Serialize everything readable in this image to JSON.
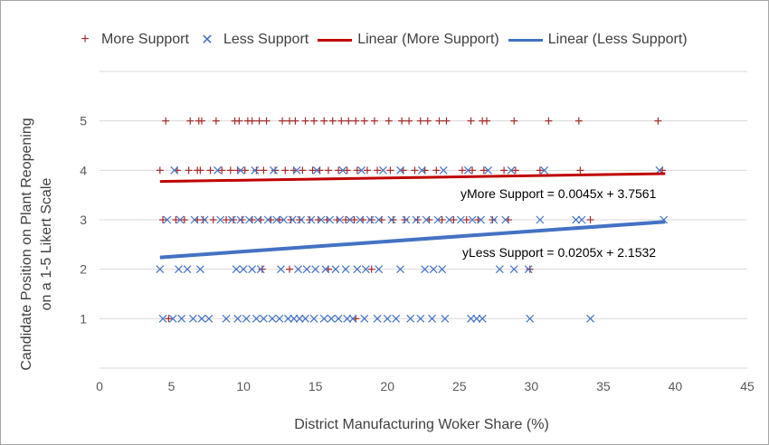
{
  "chart_data": {
    "type": "scatter",
    "xlabel": "District Manufacturing Woker Share (%)",
    "ylabel": "Candidate Position on Plant Reopening on a 1-5 Likert Scale",
    "xlim": [
      0,
      45
    ],
    "ylim": [
      0,
      6
    ],
    "x_ticks": [
      "0",
      "5",
      "10",
      "15",
      "20",
      "25",
      "30",
      "35",
      "40",
      "45"
    ],
    "y_ticks": [
      "1",
      "2",
      "3",
      "4",
      "5"
    ],
    "grid": "horizontal",
    "legend_position": "top",
    "series": [
      {
        "name": "More Support",
        "marker": "plus",
        "color": "#a52a2a",
        "points": [
          [
            4.6,
            5
          ],
          [
            6.3,
            5
          ],
          [
            6.9,
            5
          ],
          [
            7.1,
            5
          ],
          [
            8.1,
            5
          ],
          [
            9.4,
            5
          ],
          [
            9.7,
            5
          ],
          [
            10.3,
            5
          ],
          [
            10.6,
            5
          ],
          [
            11.1,
            5
          ],
          [
            11.6,
            5
          ],
          [
            12.7,
            5
          ],
          [
            13.2,
            5
          ],
          [
            13.6,
            5
          ],
          [
            14.3,
            5
          ],
          [
            14.9,
            5
          ],
          [
            15.6,
            5
          ],
          [
            16.2,
            5
          ],
          [
            16.8,
            5
          ],
          [
            17.3,
            5
          ],
          [
            17.8,
            5
          ],
          [
            18.4,
            5
          ],
          [
            19.1,
            5
          ],
          [
            20.1,
            5
          ],
          [
            21.0,
            5
          ],
          [
            21.5,
            5
          ],
          [
            22.3,
            5
          ],
          [
            22.8,
            5
          ],
          [
            23.6,
            5
          ],
          [
            24.1,
            5
          ],
          [
            25.8,
            5
          ],
          [
            26.6,
            5
          ],
          [
            26.9,
            5
          ],
          [
            28.8,
            5
          ],
          [
            31.2,
            5
          ],
          [
            33.3,
            5
          ],
          [
            38.8,
            5
          ],
          [
            4.2,
            4
          ],
          [
            5.4,
            4
          ],
          [
            6.2,
            4
          ],
          [
            6.8,
            4
          ],
          [
            7.0,
            4
          ],
          [
            7.7,
            4
          ],
          [
            8.5,
            4
          ],
          [
            9.1,
            4
          ],
          [
            9.6,
            4
          ],
          [
            10.1,
            4
          ],
          [
            10.9,
            4
          ],
          [
            11.4,
            4
          ],
          [
            12.2,
            4
          ],
          [
            12.9,
            4
          ],
          [
            13.5,
            4
          ],
          [
            14.1,
            4
          ],
          [
            14.8,
            4
          ],
          [
            15.3,
            4
          ],
          [
            15.9,
            4
          ],
          [
            16.6,
            4
          ],
          [
            17.2,
            4
          ],
          [
            17.9,
            4
          ],
          [
            18.6,
            4
          ],
          [
            19.3,
            4
          ],
          [
            20.2,
            4
          ],
          [
            21.1,
            4
          ],
          [
            21.9,
            4
          ],
          [
            22.6,
            4
          ],
          [
            23.4,
            4
          ],
          [
            25.2,
            4
          ],
          [
            25.9,
            4
          ],
          [
            26.7,
            4
          ],
          [
            28.1,
            4
          ],
          [
            28.9,
            4
          ],
          [
            30.6,
            4
          ],
          [
            33.4,
            4
          ],
          [
            39.1,
            4
          ],
          [
            4.4,
            3
          ],
          [
            5.3,
            3
          ],
          [
            5.9,
            3
          ],
          [
            6.8,
            3
          ],
          [
            7.2,
            3
          ],
          [
            7.9,
            3
          ],
          [
            8.8,
            3
          ],
          [
            9.3,
            3
          ],
          [
            9.9,
            3
          ],
          [
            10.6,
            3
          ],
          [
            11.2,
            3
          ],
          [
            11.9,
            3
          ],
          [
            12.5,
            3
          ],
          [
            13.3,
            3
          ],
          [
            13.9,
            3
          ],
          [
            14.6,
            3
          ],
          [
            15.2,
            3
          ],
          [
            15.8,
            3
          ],
          [
            16.5,
            3
          ],
          [
            17.1,
            3
          ],
          [
            17.7,
            3
          ],
          [
            18.3,
            3
          ],
          [
            18.9,
            3
          ],
          [
            19.6,
            3
          ],
          [
            20.4,
            3
          ],
          [
            21.2,
            3
          ],
          [
            22.1,
            3
          ],
          [
            22.9,
            3
          ],
          [
            23.8,
            3
          ],
          [
            24.6,
            3
          ],
          [
            25.5,
            3
          ],
          [
            26.3,
            3
          ],
          [
            27.3,
            3
          ],
          [
            28.4,
            3
          ],
          [
            34.1,
            3
          ],
          [
            11.3,
            2
          ],
          [
            13.2,
            2
          ],
          [
            15.9,
            2
          ],
          [
            18.9,
            2
          ],
          [
            29.9,
            2
          ],
          [
            4.8,
            1
          ],
          [
            17.8,
            1
          ]
        ]
      },
      {
        "name": "Less Support",
        "marker": "x",
        "color": "#4472c4",
        "points": [
          [
            5.2,
            4
          ],
          [
            8.2,
            4
          ],
          [
            9.8,
            4
          ],
          [
            10.8,
            4
          ],
          [
            12.1,
            4
          ],
          [
            13.7,
            4
          ],
          [
            15.1,
            4
          ],
          [
            16.9,
            4
          ],
          [
            18.2,
            4
          ],
          [
            19.7,
            4
          ],
          [
            20.9,
            4
          ],
          [
            22.4,
            4
          ],
          [
            23.9,
            4
          ],
          [
            25.6,
            4
          ],
          [
            27.0,
            4
          ],
          [
            28.6,
            4
          ],
          [
            30.9,
            4
          ],
          [
            38.9,
            4
          ],
          [
            4.7,
            3
          ],
          [
            5.6,
            3
          ],
          [
            6.6,
            3
          ],
          [
            7.3,
            3
          ],
          [
            8.4,
            3
          ],
          [
            9.2,
            3
          ],
          [
            9.8,
            3
          ],
          [
            10.4,
            3
          ],
          [
            11.0,
            3
          ],
          [
            11.7,
            3
          ],
          [
            12.3,
            3
          ],
          [
            12.8,
            3
          ],
          [
            13.4,
            3
          ],
          [
            14.0,
            3
          ],
          [
            14.7,
            3
          ],
          [
            15.4,
            3
          ],
          [
            16.0,
            3
          ],
          [
            16.7,
            3
          ],
          [
            17.4,
            3
          ],
          [
            18.1,
            3
          ],
          [
            18.8,
            3
          ],
          [
            19.4,
            3
          ],
          [
            20.3,
            3
          ],
          [
            21.3,
            3
          ],
          [
            22.0,
            3
          ],
          [
            22.7,
            3
          ],
          [
            23.5,
            3
          ],
          [
            24.3,
            3
          ],
          [
            25.1,
            3
          ],
          [
            25.9,
            3
          ],
          [
            26.5,
            3
          ],
          [
            27.4,
            3
          ],
          [
            28.2,
            3
          ],
          [
            30.6,
            3
          ],
          [
            33.1,
            3
          ],
          [
            33.5,
            3
          ],
          [
            39.2,
            3
          ],
          [
            4.2,
            2
          ],
          [
            5.5,
            2
          ],
          [
            6.1,
            2
          ],
          [
            7.0,
            2
          ],
          [
            9.5,
            2
          ],
          [
            10.0,
            2
          ],
          [
            10.6,
            2
          ],
          [
            11.2,
            2
          ],
          [
            12.6,
            2
          ],
          [
            13.8,
            2
          ],
          [
            14.4,
            2
          ],
          [
            15.0,
            2
          ],
          [
            15.7,
            2
          ],
          [
            16.4,
            2
          ],
          [
            17.1,
            2
          ],
          [
            17.9,
            2
          ],
          [
            18.5,
            2
          ],
          [
            19.4,
            2
          ],
          [
            20.9,
            2
          ],
          [
            22.6,
            2
          ],
          [
            23.2,
            2
          ],
          [
            23.8,
            2
          ],
          [
            27.8,
            2
          ],
          [
            28.8,
            2
          ],
          [
            29.8,
            2
          ],
          [
            4.4,
            1
          ],
          [
            5.1,
            1
          ],
          [
            5.7,
            1
          ],
          [
            6.5,
            1
          ],
          [
            7.1,
            1
          ],
          [
            7.6,
            1
          ],
          [
            8.8,
            1
          ],
          [
            9.6,
            1
          ],
          [
            10.2,
            1
          ],
          [
            10.9,
            1
          ],
          [
            11.4,
            1
          ],
          [
            12.0,
            1
          ],
          [
            12.5,
            1
          ],
          [
            13.1,
            1
          ],
          [
            13.5,
            1
          ],
          [
            13.9,
            1
          ],
          [
            14.3,
            1
          ],
          [
            14.9,
            1
          ],
          [
            15.6,
            1
          ],
          [
            16.1,
            1
          ],
          [
            16.6,
            1
          ],
          [
            17.2,
            1
          ],
          [
            17.6,
            1
          ],
          [
            18.4,
            1
          ],
          [
            19.3,
            1
          ],
          [
            20.0,
            1
          ],
          [
            20.6,
            1
          ],
          [
            21.6,
            1
          ],
          [
            22.3,
            1
          ],
          [
            23.1,
            1
          ],
          [
            24.0,
            1
          ],
          [
            25.8,
            1
          ],
          [
            26.2,
            1
          ],
          [
            26.6,
            1
          ],
          [
            29.9,
            1
          ],
          [
            34.1,
            1
          ]
        ]
      }
    ],
    "trendlines": [
      {
        "name": "Linear (More Support)",
        "color": "#c00000",
        "slope": 0.0045,
        "intercept": 3.7561,
        "x_range": [
          4.2,
          39.3
        ],
        "equation": "yMore Support = 0.0045x + 3.7561"
      },
      {
        "name": "Linear (Less Support)",
        "color": "#4472c4",
        "slope": 0.0205,
        "intercept": 2.1532,
        "x_range": [
          4.2,
          39.3
        ],
        "equation": "yLess Support = 0.0205x + 2.1532"
      }
    ],
    "annotations": [
      "yMore Support = 0.0045x + 3.7561",
      "yLess Support = 0.0205x + 2.1532"
    ]
  }
}
